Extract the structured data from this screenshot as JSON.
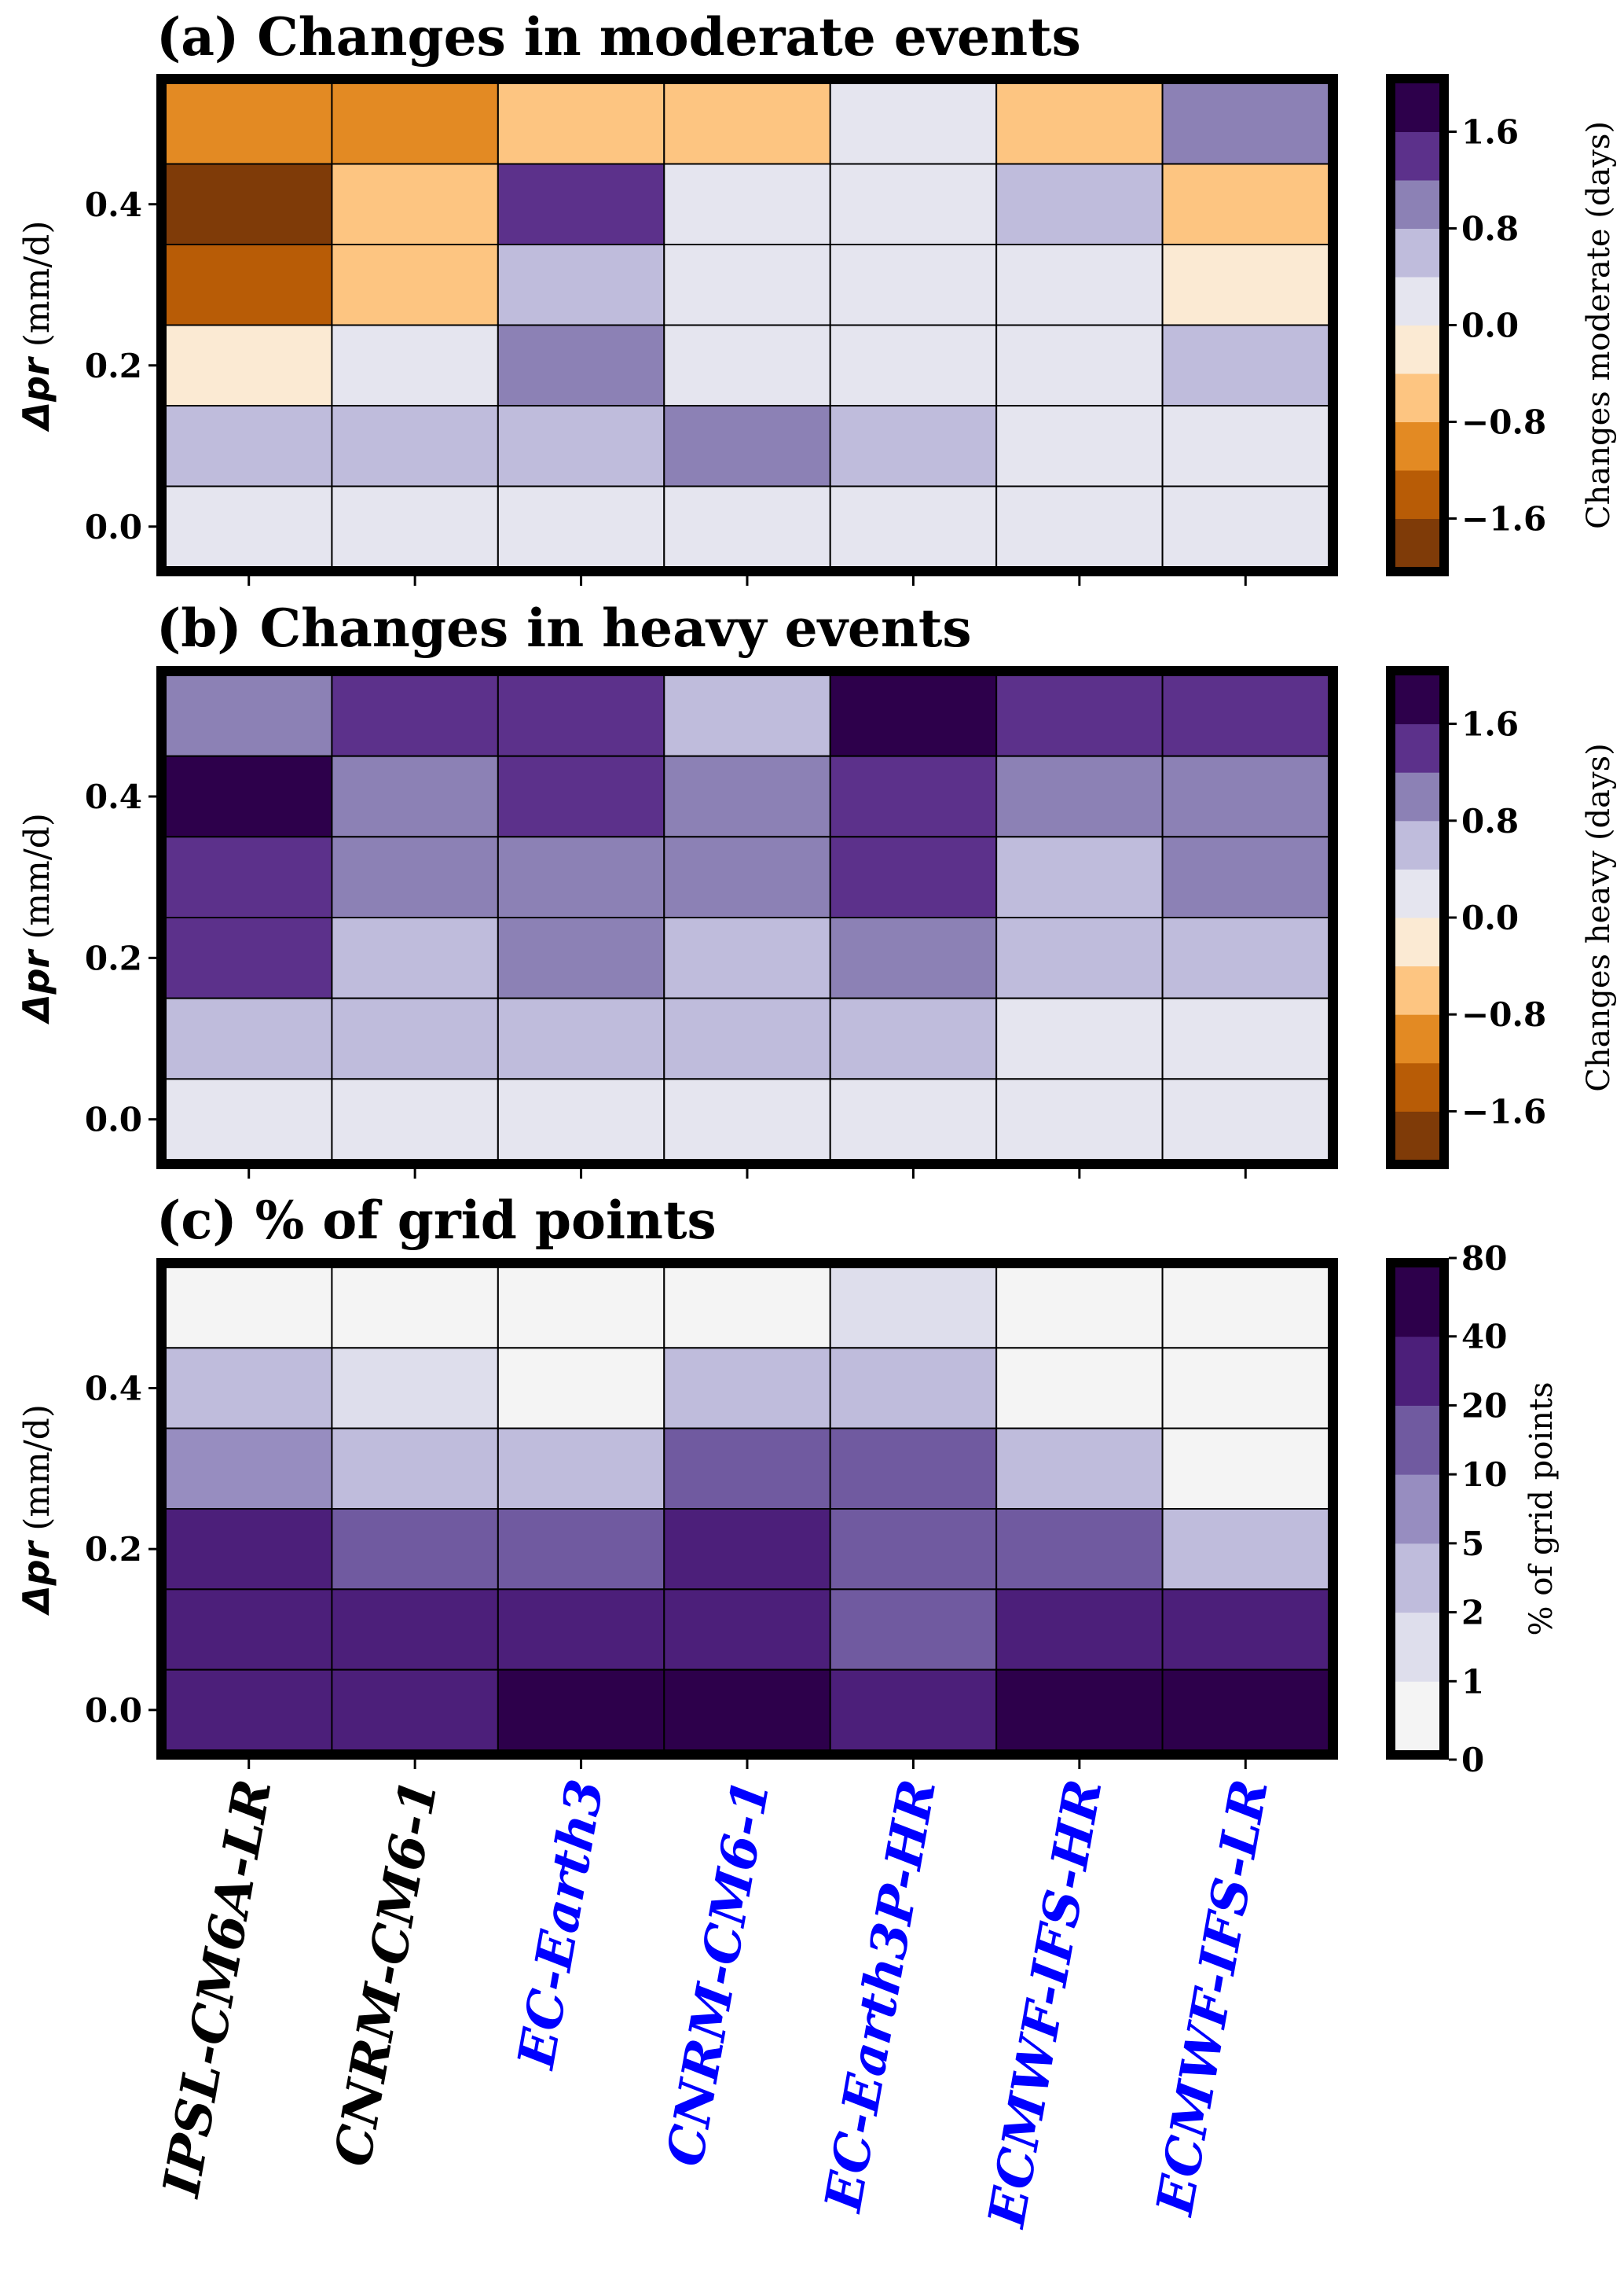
{
  "chart_data": [
    {
      "type": "heatmap",
      "panel": "a",
      "title": "(a) Changes in moderate events",
      "ylabel_symbol": "Δpr",
      "ylabel_unit": " (mm/d)",
      "x_categories": [
        "IPSL-CM6A-LR",
        "CNRM-CM6-1",
        "EC-Earth3",
        "CNRM-CM6-1",
        "EC-Earth3P-HR",
        "ECMWF-IFS-HR",
        "ECMWF-IFS-LR"
      ],
      "y_rows": [
        0.5,
        0.4,
        0.3,
        0.2,
        0.1,
        0.0
      ],
      "yticks": [
        {
          "value": 0.4,
          "label": "0.4"
        },
        {
          "value": 0.2,
          "label": "0.2"
        },
        {
          "value": 0.0,
          "label": "0.0"
        }
      ],
      "values": [
        [
          -1.0,
          -1.0,
          -0.6,
          -0.6,
          0.2,
          -0.6,
          1.0
        ],
        [
          -1.8,
          -0.6,
          1.4,
          0.2,
          0.2,
          0.6,
          -0.6
        ],
        [
          -1.4,
          -0.6,
          0.6,
          0.2,
          0.2,
          0.2,
          -0.2
        ],
        [
          -0.2,
          0.2,
          1.0,
          0.2,
          0.2,
          0.2,
          0.6
        ],
        [
          0.6,
          0.6,
          0.6,
          1.0,
          0.6,
          0.2,
          0.2
        ],
        [
          0.2,
          0.2,
          0.2,
          0.2,
          0.2,
          0.2,
          0.2
        ]
      ],
      "colorbar": {
        "label": "Changes moderate (days)",
        "boundaries": [
          -2.0,
          -1.6,
          -1.2,
          -0.8,
          -0.4,
          0.0,
          0.4,
          0.8,
          1.2,
          1.6,
          2.0
        ],
        "colors": [
          "#7f3b08",
          "#b85c06",
          "#e38a23",
          "#fdc581",
          "#fbead3",
          "#e5e5ef",
          "#bfbcdc",
          "#8c81b5",
          "#5c318b",
          "#2d004b"
        ],
        "ticks": [
          {
            "value": -1.6,
            "label": "−1.6"
          },
          {
            "value": -0.8,
            "label": "−0.8"
          },
          {
            "value": 0.0,
            "label": "0.0"
          },
          {
            "value": 0.8,
            "label": "0.8"
          },
          {
            "value": 1.6,
            "label": "1.6"
          }
        ]
      }
    },
    {
      "type": "heatmap",
      "panel": "b",
      "title": "(b) Changes in heavy events",
      "ylabel_symbol": "Δpr",
      "ylabel_unit": " (mm/d)",
      "x_categories": [
        "IPSL-CM6A-LR",
        "CNRM-CM6-1",
        "EC-Earth3",
        "CNRM-CM6-1",
        "EC-Earth3P-HR",
        "ECMWF-IFS-HR",
        "ECMWF-IFS-LR"
      ],
      "y_rows": [
        0.5,
        0.4,
        0.3,
        0.2,
        0.1,
        0.0
      ],
      "yticks": [
        {
          "value": 0.4,
          "label": "0.4"
        },
        {
          "value": 0.2,
          "label": "0.2"
        },
        {
          "value": 0.0,
          "label": "0.0"
        }
      ],
      "values": [
        [
          1.0,
          1.4,
          1.4,
          0.6,
          1.8,
          1.4,
          1.4
        ],
        [
          1.8,
          1.0,
          1.4,
          1.0,
          1.4,
          1.0,
          1.0
        ],
        [
          1.4,
          1.0,
          1.0,
          1.0,
          1.4,
          0.6,
          1.0
        ],
        [
          1.4,
          0.6,
          1.0,
          0.6,
          1.0,
          0.6,
          0.6
        ],
        [
          0.6,
          0.6,
          0.6,
          0.6,
          0.6,
          0.2,
          0.2
        ],
        [
          0.2,
          0.2,
          0.2,
          0.2,
          0.2,
          0.2,
          0.2
        ]
      ],
      "colorbar": {
        "label": "Changes heavy (days)",
        "boundaries": [
          -2.0,
          -1.6,
          -1.2,
          -0.8,
          -0.4,
          0.0,
          0.4,
          0.8,
          1.2,
          1.6,
          2.0
        ],
        "colors": [
          "#7f3b08",
          "#b85c06",
          "#e38a23",
          "#fdc581",
          "#fbead3",
          "#e5e5ef",
          "#bfbcdc",
          "#8c81b5",
          "#5c318b",
          "#2d004b"
        ],
        "ticks": [
          {
            "value": -1.6,
            "label": "−1.6"
          },
          {
            "value": -0.8,
            "label": "−0.8"
          },
          {
            "value": 0.0,
            "label": "0.0"
          },
          {
            "value": 0.8,
            "label": "0.8"
          },
          {
            "value": 1.6,
            "label": "1.6"
          }
        ]
      }
    },
    {
      "type": "heatmap",
      "panel": "c",
      "title": "(c) % of grid points",
      "ylabel_symbol": "Δpr",
      "ylabel_unit": " (mm/d)",
      "x_categories": [
        "IPSL-CM6A-LR",
        "CNRM-CM6-1",
        "EC-Earth3",
        "CNRM-CM6-1",
        "EC-Earth3P-HR",
        "ECMWF-IFS-HR",
        "ECMWF-IFS-LR"
      ],
      "x_label_colors": [
        "#000000",
        "#000000",
        "#0000ff",
        "#0000ff",
        "#0000ff",
        "#0000ff",
        "#0000ff"
      ],
      "y_rows": [
        0.5,
        0.4,
        0.3,
        0.2,
        0.1,
        0.0
      ],
      "yticks": [
        {
          "value": 0.4,
          "label": "0.4"
        },
        {
          "value": 0.2,
          "label": "0.2"
        },
        {
          "value": 0.0,
          "label": "0.0"
        }
      ],
      "values": [
        [
          0.5,
          0.5,
          0.5,
          0.5,
          1.5,
          0.5,
          0.5
        ],
        [
          3,
          1.5,
          0.5,
          3,
          3,
          0.5,
          0.5
        ],
        [
          7,
          3,
          3,
          15,
          15,
          3,
          0.5
        ],
        [
          30,
          15,
          15,
          30,
          15,
          15,
          3
        ],
        [
          30,
          30,
          30,
          30,
          15,
          30,
          30
        ],
        [
          30,
          30,
          60,
          60,
          30,
          60,
          60
        ]
      ],
      "colorbar": {
        "label": "% of grid points",
        "boundaries": [
          0,
          1,
          2,
          5,
          10,
          20,
          40,
          80
        ],
        "colors": [
          "#f4f4f4",
          "#dedeec",
          "#bfbcdc",
          "#978dc0",
          "#705aa0",
          "#4c1f7a",
          "#2d004b"
        ],
        "ticks": [
          {
            "value": 0,
            "label": "0"
          },
          {
            "value": 1,
            "label": "1"
          },
          {
            "value": 2,
            "label": "2"
          },
          {
            "value": 5,
            "label": "5"
          },
          {
            "value": 10,
            "label": "10"
          },
          {
            "value": 20,
            "label": "20"
          },
          {
            "value": 40,
            "label": "40"
          },
          {
            "value": 80,
            "label": "80"
          }
        ]
      }
    }
  ]
}
